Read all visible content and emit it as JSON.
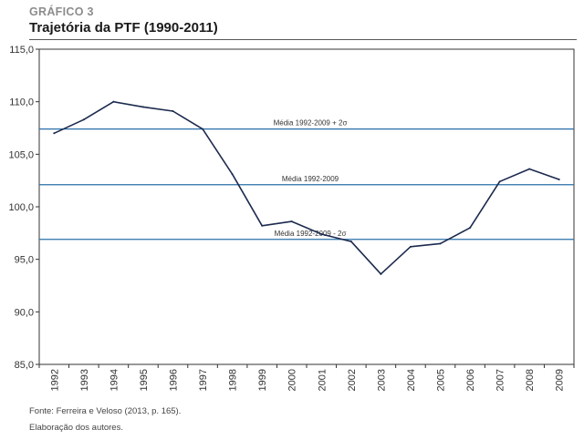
{
  "header": {
    "label": "GRÁFICO 3",
    "title": "Trajetória da PTF (1990-2011)"
  },
  "footer": {
    "source": "Fonte: Ferreira e Veloso (2013, p. 165).",
    "credit": "Elaboração dos autores."
  },
  "colors": {
    "series_line": "#1c2a4e",
    "reference_lines": "#2a6fa8",
    "frame": "#333333",
    "text": "#333333"
  },
  "chart_data": {
    "type": "line",
    "title": "Trajetória da PTF (1990-2011)",
    "xlabel": "",
    "ylabel": "",
    "ylim": [
      85,
      115
    ],
    "y_ticks": [
      "85,0",
      "90,0",
      "95,0",
      "100,0",
      "105,0",
      "110,0",
      "115,0"
    ],
    "x": [
      "1992",
      "1993",
      "1994",
      "1995",
      "1996",
      "1997",
      "1998",
      "1999",
      "2000",
      "2001",
      "2002",
      "2003",
      "2004",
      "2005",
      "2006",
      "2007",
      "2008",
      "2009"
    ],
    "series": [
      {
        "values": [
          107.0,
          108.3,
          110.0,
          109.5,
          109.1,
          107.4,
          103.1,
          98.2,
          98.6,
          97.4,
          96.7,
          93.6,
          96.2,
          96.5,
          98.0,
          102.4,
          103.6,
          102.6
        ]
      }
    ],
    "reference_lines": [
      {
        "label": "Média 1992-2009 + 2σ",
        "value": 107.4
      },
      {
        "label": "Média 1992-2009",
        "value": 102.1
      },
      {
        "label": "Média 1992-2009 - 2σ",
        "value": 96.9
      }
    ],
    "grid": false,
    "legend": "none"
  }
}
